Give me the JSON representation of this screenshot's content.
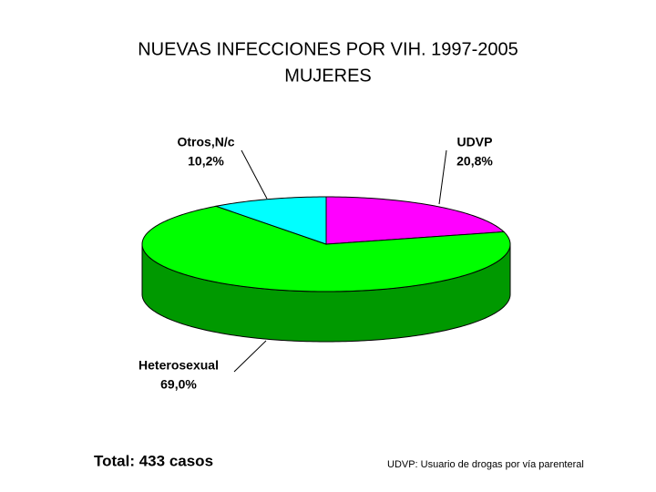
{
  "chart_data": {
    "type": "pie3d",
    "title": "NUEVAS INFECCIONES POR VIH. 1997-2005",
    "subtitle": "MUJERES",
    "categories": [
      "UDVP",
      "Heterosexual",
      "Otros,N/c"
    ],
    "values": [
      20.8,
      69.0,
      10.2
    ],
    "value_labels": [
      "20,8%",
      "69,0%",
      "10,2%"
    ],
    "colors": [
      "#ff00ff",
      "#00ff00",
      "#00ffff"
    ],
    "annotations": [
      "Total: 433 casos",
      "UDVP: Usuario de drogas por vía parenteral"
    ]
  }
}
